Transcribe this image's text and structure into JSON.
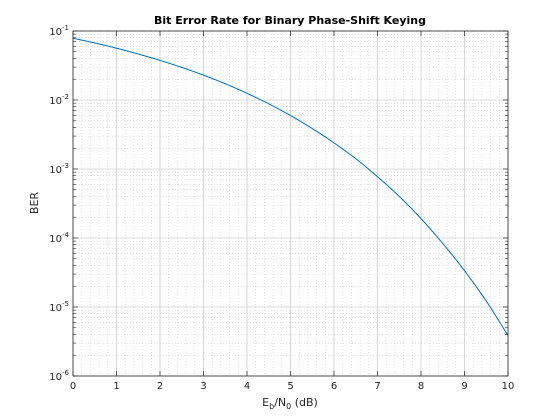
{
  "chart_data": {
    "type": "line",
    "title": "Bit Error Rate for Binary Phase-Shift Keying",
    "xlabel": {
      "base1": "E",
      "sub1": "b",
      "mid": "/N",
      "sub2": "0",
      "tail": " (dB)"
    },
    "ylabel": "BER",
    "xlim": [
      0,
      10
    ],
    "ylim": [
      1e-06,
      0.1
    ],
    "yscale": "log",
    "grid": true,
    "minor_grid": true,
    "x_ticks": [
      "0",
      "1",
      "2",
      "3",
      "4",
      "5",
      "6",
      "7",
      "8",
      "9",
      "10"
    ],
    "y_ticks": [
      {
        "base": "10",
        "exp": "-6"
      },
      {
        "base": "10",
        "exp": "-5"
      },
      {
        "base": "10",
        "exp": "-4"
      },
      {
        "base": "10",
        "exp": "-3"
      },
      {
        "base": "10",
        "exp": "-2"
      },
      {
        "base": "10",
        "exp": "-1"
      }
    ],
    "series": [
      {
        "color": "#0072bd",
        "x": [
          0,
          0.5,
          1,
          1.5,
          2,
          2.5,
          3,
          3.5,
          4,
          4.5,
          5,
          5.5,
          6,
          6.5,
          7,
          7.5,
          8,
          8.5,
          9,
          9.5,
          10
        ],
        "y": [
          0.0786,
          0.0671,
          0.0563,
          0.0464,
          0.0375,
          0.0297,
          0.0229,
          0.0172,
          0.0125,
          0.00881,
          0.00595,
          0.00386,
          0.00239,
          0.00141,
          0.000773,
          0.000401,
          0.000191,
          8.34e-05,
          3.36e-05,
          1.22e-05,
          3.87e-06
        ]
      }
    ]
  }
}
